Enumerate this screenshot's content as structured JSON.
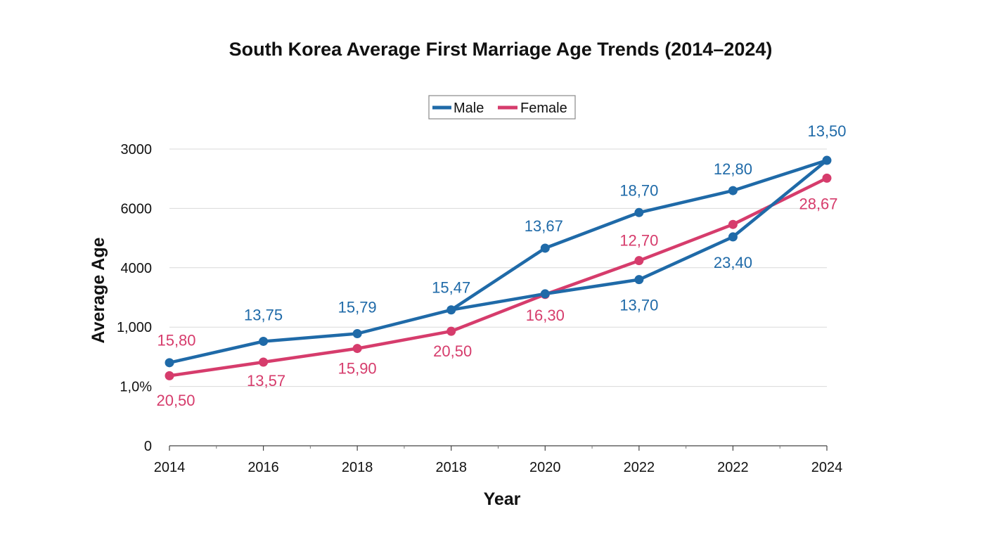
{
  "chart_data": {
    "type": "line",
    "title": "South Korea Average First Marriage Age Trends (2014–2024)",
    "xlabel": "Year",
    "ylabel": "Average Age",
    "x_tick_labels": [
      "2014",
      "2016",
      "2018",
      "2018",
      "2020",
      "2022",
      "2022",
      "2024"
    ],
    "y_tick_labels": [
      "0",
      "1,0%",
      "1,000",
      "4000",
      "6000",
      "3000"
    ],
    "ylim": [
      0,
      5
    ],
    "grid": true,
    "legend_position": "top-center",
    "series": [
      {
        "name": "Male",
        "color": "#1f6aa8",
        "values": [
          1.4,
          1.76,
          1.89,
          2.29,
          3.33,
          3.93,
          4.3,
          4.81
        ],
        "data_labels": [
          "",
          "13,75",
          "15,79",
          "15,47",
          "13,67",
          "18,70",
          "12,80",
          "13,50"
        ],
        "extra_points": [
          {
            "index": 4,
            "value": 2.56,
            "label": ""
          },
          {
            "index": 5,
            "value": 2.8,
            "label": "13,70"
          },
          {
            "index": 6,
            "value": 3.52,
            "label": "23,40"
          }
        ]
      },
      {
        "name": "Female",
        "color": "#d63c6c",
        "values": [
          1.18,
          1.41,
          1.64,
          1.93,
          2.55,
          3.12,
          3.73,
          4.51
        ],
        "data_labels": [
          "15,80",
          "13,57",
          "15,90",
          "20,50",
          "16,30",
          "12,70",
          "",
          "28,67"
        ]
      }
    ],
    "extra_labels": [
      "20,50"
    ]
  }
}
